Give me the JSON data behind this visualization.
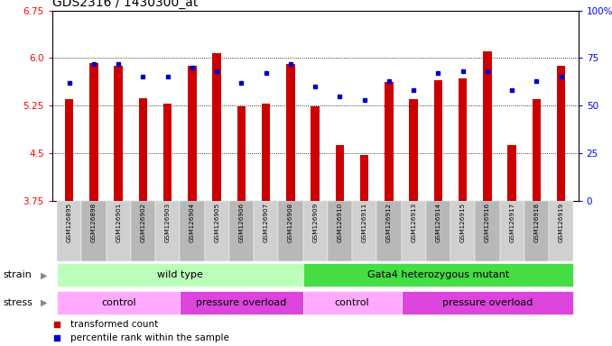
{
  "title": "GDS2316 / 1430300_at",
  "samples": [
    "GSM126895",
    "GSM126898",
    "GSM126901",
    "GSM126902",
    "GSM126903",
    "GSM126904",
    "GSM126905",
    "GSM126906",
    "GSM126907",
    "GSM126908",
    "GSM126909",
    "GSM126910",
    "GSM126911",
    "GSM126912",
    "GSM126913",
    "GSM126914",
    "GSM126915",
    "GSM126916",
    "GSM126917",
    "GSM126918",
    "GSM126919"
  ],
  "transformed_count": [
    5.35,
    5.92,
    5.88,
    5.37,
    5.28,
    5.87,
    6.07,
    5.24,
    5.28,
    5.9,
    5.24,
    4.62,
    4.47,
    5.62,
    5.35,
    5.65,
    5.68,
    6.1,
    4.62,
    5.35,
    5.87
  ],
  "percentile_rank": [
    62,
    72,
    72,
    65,
    65,
    70,
    68,
    62,
    67,
    72,
    60,
    55,
    53,
    63,
    58,
    67,
    68,
    68,
    58,
    63,
    65
  ],
  "y_min": 3.75,
  "y_max": 6.75,
  "y_ticks_left": [
    3.75,
    4.5,
    5.25,
    6.0,
    6.75
  ],
  "y_ticks_right": [
    0,
    25,
    50,
    75,
    100
  ],
  "bar_color": "#cc0000",
  "dot_color": "#0000cc",
  "strain_labels": [
    {
      "text": "wild type",
      "start": 0,
      "end": 10,
      "color": "#bbffbb"
    },
    {
      "text": "Gata4 heterozygous mutant",
      "start": 10,
      "end": 21,
      "color": "#44dd44"
    }
  ],
  "stress_labels": [
    {
      "text": "control",
      "start": 0,
      "end": 5,
      "color": "#ffaaff"
    },
    {
      "text": "pressure overload",
      "start": 5,
      "end": 10,
      "color": "#dd44dd"
    },
    {
      "text": "control",
      "start": 10,
      "end": 14,
      "color": "#ffaaff"
    },
    {
      "text": "pressure overload",
      "start": 14,
      "end": 21,
      "color": "#dd44dd"
    }
  ],
  "legend_items": [
    {
      "label": "transformed count",
      "color": "#cc0000"
    },
    {
      "label": "percentile rank within the sample",
      "color": "#0000cc"
    }
  ],
  "xtick_colors": [
    "#c8c8c8",
    "#b8b8b8"
  ]
}
